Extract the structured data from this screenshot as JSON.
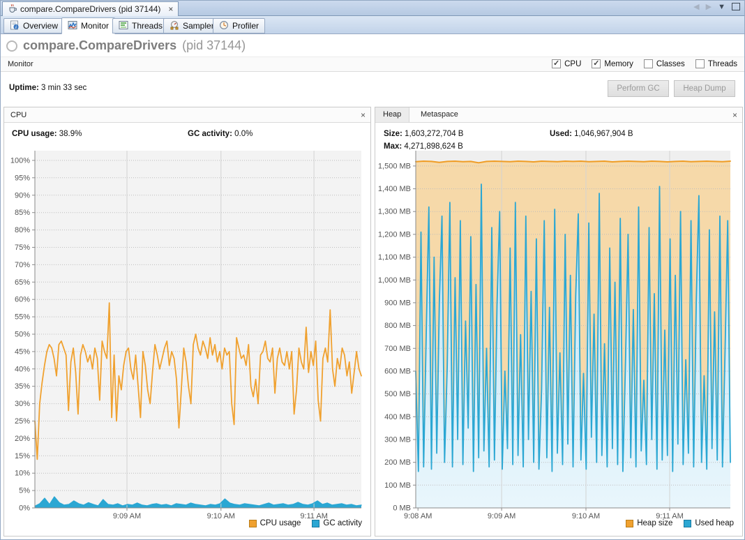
{
  "window": {
    "doc_tab": "compare.CompareDrivers (pid 37144)",
    "doc_tab_close": "×"
  },
  "tabs": [
    {
      "label": "Overview",
      "selected": false
    },
    {
      "label": "Monitor",
      "selected": true
    },
    {
      "label": "Threads",
      "selected": false
    },
    {
      "label": "Sampler",
      "selected": false
    },
    {
      "label": "Profiler",
      "selected": false
    }
  ],
  "header": {
    "title": "compare.CompareDrivers",
    "pid": "(pid 37144)"
  },
  "monitor_bar": {
    "label": "Monitor",
    "checkboxes": [
      {
        "label": "CPU",
        "checked": true
      },
      {
        "label": "Memory",
        "checked": true
      },
      {
        "label": "Classes",
        "checked": false
      },
      {
        "label": "Threads",
        "checked": false
      }
    ]
  },
  "status": {
    "uptime_label": "Uptime:",
    "uptime_value": "3 min 33 sec",
    "buttons": [
      {
        "label": "Perform GC",
        "enabled": false
      },
      {
        "label": "Heap Dump",
        "enabled": false
      }
    ]
  },
  "cpu_panel": {
    "title": "CPU",
    "close": "×",
    "stats": [
      {
        "label": "CPU usage:",
        "value": "38.9%"
      },
      {
        "label": "GC activity:",
        "value": "0.0%"
      }
    ]
  },
  "heap_panel": {
    "tabs": [
      {
        "label": "Heap",
        "selected": true
      },
      {
        "label": "Metaspace",
        "selected": false
      }
    ],
    "close": "×",
    "stats": [
      {
        "label": "Size:",
        "value": "1,603,272,704 B"
      },
      {
        "label": "Max:",
        "value": "4,271,898,624 B"
      },
      {
        "label": "Used:",
        "value": "1,046,967,904 B"
      }
    ]
  },
  "colors": {
    "orange": "#f0a12f",
    "orange_border": "#b97c17",
    "orange_fill": "#f6d9a9",
    "blue": "#2ba7d3",
    "blue_border": "#17789f",
    "plot_bg": "#f3f3f3",
    "grid": "#bdbdbd",
    "axis": "#8a8a8a"
  },
  "chart_data": [
    {
      "id": "cpu",
      "type": "line",
      "title": "CPU usage / GC activity over time",
      "ylim": [
        0,
        102.8
      ],
      "bg": "#f3f3f3",
      "margins": {
        "l": 42,
        "r": 9,
        "t": 6,
        "b": 22
      },
      "y_ticks": [
        {
          "v": 0,
          "label": "0%"
        },
        {
          "v": 5,
          "label": "5%"
        },
        {
          "v": 10,
          "label": "10%"
        },
        {
          "v": 15,
          "label": "15%"
        },
        {
          "v": 20,
          "label": "20%"
        },
        {
          "v": 25,
          "label": "25%"
        },
        {
          "v": 30,
          "label": "30%"
        },
        {
          "v": 35,
          "label": "35%"
        },
        {
          "v": 40,
          "label": "40%"
        },
        {
          "v": 45,
          "label": "45%"
        },
        {
          "v": 50,
          "label": "50%"
        },
        {
          "v": 55,
          "label": "55%"
        },
        {
          "v": 60,
          "label": "60%"
        },
        {
          "v": 65,
          "label": "65%"
        },
        {
          "v": 70,
          "label": "70%"
        },
        {
          "v": 75,
          "label": "75%"
        },
        {
          "v": 80,
          "label": "80%"
        },
        {
          "v": 85,
          "label": "85%"
        },
        {
          "v": 90,
          "label": "90%"
        },
        {
          "v": 95,
          "label": "95%"
        },
        {
          "v": 100,
          "label": "100%"
        }
      ],
      "x_ticks": [
        {
          "f": 0.282,
          "label": "9:09 AM",
          "vline": true
        },
        {
          "f": 0.57,
          "label": "9:10 AM",
          "vline": true
        },
        {
          "f": 0.855,
          "label": "9:11 AM",
          "vline": true
        }
      ],
      "series": [
        {
          "name": "CPU usage",
          "color": "#f0a12f",
          "width": 1.8,
          "values": [
            25,
            14,
            30,
            36,
            41,
            45,
            47,
            46,
            43,
            38,
            47,
            48,
            46,
            44,
            28,
            42,
            46,
            39,
            27,
            44,
            47,
            45,
            42,
            44,
            40,
            46,
            43,
            31,
            48,
            45,
            43,
            59,
            26,
            44,
            25,
            38,
            34,
            41,
            45,
            46,
            40,
            37,
            44,
            35,
            26,
            45,
            41,
            34,
            30,
            39,
            47,
            44,
            40,
            43,
            46,
            48,
            41,
            45,
            43,
            37,
            23,
            34,
            46,
            42,
            35,
            30,
            47,
            50,
            46,
            44,
            48,
            46,
            43,
            49,
            44,
            47,
            42,
            45,
            40,
            46,
            44,
            45,
            30,
            24,
            49,
            46,
            43,
            44,
            41,
            47,
            35,
            32,
            37,
            30,
            44,
            45,
            48,
            43,
            42,
            46,
            33,
            43,
            46,
            42,
            41,
            45,
            40,
            45,
            27,
            34,
            46,
            42,
            40,
            52,
            39,
            45,
            41,
            48,
            31,
            25,
            43,
            46,
            42,
            57,
            40,
            35,
            43,
            40,
            46,
            44,
            38,
            42,
            33,
            39,
            45,
            40,
            38
          ]
        },
        {
          "name": "GC activity",
          "color": "#2ba7d3",
          "width": 1.4,
          "fill": "#2ba7d3",
          "values": [
            0.5,
            1.2,
            2.8,
            1.0,
            3.2,
            1.5,
            0.8,
            1.0,
            2.0,
            1.2,
            0.8,
            1.5,
            1.0,
            0.6,
            2.4,
            1.0,
            0.8,
            1.2,
            0.6,
            1.0,
            0.8,
            1.4,
            0.8,
            0.6,
            1.0,
            1.2,
            0.8,
            1.0,
            0.6,
            1.2,
            1.0,
            0.8,
            1.4,
            1.0,
            0.8,
            0.6,
            1.0,
            0.8,
            1.2,
            2.6,
            1.4,
            1.0,
            0.8,
            1.2,
            1.0,
            0.8,
            0.6,
            1.0,
            1.4,
            0.8,
            1.0,
            1.2,
            0.8,
            1.0,
            1.6,
            1.0,
            0.8,
            1.2,
            2.0,
            1.0,
            1.4,
            0.8,
            1.0,
            1.2,
            0.8,
            1.0,
            0.6,
            0.8
          ]
        }
      ],
      "legend": [
        "CPU usage",
        "GC activity"
      ]
    },
    {
      "id": "heap",
      "type": "area",
      "title": "Heap size / Used heap over time",
      "ylim": [
        0,
        1567
      ],
      "bg": "#efefef",
      "margins": {
        "l": 56,
        "r": 15,
        "t": 6,
        "b": 20
      },
      "fill_gradient": {
        "from": "#bce1f2",
        "to": "#e9f6fc"
      },
      "y_ticks": [
        {
          "v": 0,
          "label": "0 MB"
        },
        {
          "v": 100,
          "label": "100 MB"
        },
        {
          "v": 200,
          "label": "200 MB"
        },
        {
          "v": 300,
          "label": "300 MB"
        },
        {
          "v": 400,
          "label": "400 MB"
        },
        {
          "v": 500,
          "label": "500 MB"
        },
        {
          "v": 600,
          "label": "600 MB"
        },
        {
          "v": 700,
          "label": "700 MB"
        },
        {
          "v": 800,
          "label": "800 MB"
        },
        {
          "v": 900,
          "label": "900 MB"
        },
        {
          "v": 1000,
          "label": "1,000 MB"
        },
        {
          "v": 1100,
          "label": "1,100 MB"
        },
        {
          "v": 1200,
          "label": "1,200 MB"
        },
        {
          "v": 1300,
          "label": "1,300 MB"
        },
        {
          "v": 1400,
          "label": "1,400 MB"
        },
        {
          "v": 1500,
          "label": "1,500 MB"
        }
      ],
      "x_ticks": [
        {
          "f": 0.007,
          "label": "9:08 AM",
          "vline": false
        },
        {
          "f": 0.273,
          "label": "9:09 AM",
          "vline": true
        },
        {
          "f": 0.541,
          "label": "9:10 AM",
          "vline": true
        },
        {
          "f": 0.807,
          "label": "9:11 AM",
          "vline": true
        }
      ],
      "series": [
        {
          "name": "Heap size",
          "color": "#ef9d26",
          "width": 2,
          "fill": "#f6d9a9",
          "values": [
            1519,
            1521,
            1520,
            1516,
            1520,
            1521,
            1519,
            1520,
            1514,
            1520,
            1521,
            1520,
            1519,
            1521,
            1520,
            1518,
            1521,
            1520,
            1519,
            1521,
            1520,
            1521,
            1519,
            1520,
            1521,
            1518,
            1520,
            1521,
            1520,
            1519,
            1521,
            1520,
            1518,
            1520,
            1521,
            1519,
            1520,
            1521,
            1520,
            1519,
            1521
          ]
        },
        {
          "name": "Used heap",
          "color": "#2ba7d3",
          "width": 1.8,
          "fill": "gradient",
          "values": [
            600,
            160,
            1210,
            180,
            760,
            1320,
            170,
            1100,
            240,
            900,
            1280,
            200,
            620,
            1340,
            180,
            1010,
            300,
            1260,
            190,
            820,
            350,
            1190,
            160,
            980,
            220,
            1420,
            250,
            700,
            180,
            1230,
            210,
            890,
            1300,
            170,
            600,
            260,
            1140,
            190,
            1340,
            230,
            760,
            180,
            1280,
            300,
            950,
            200,
            1180,
            170,
            520,
            1260,
            220,
            880,
            160,
            1310,
            240,
            680,
            190,
            1200,
            280,
            1020,
            180,
            930,
            1290,
            210,
            590,
            170,
            1250,
            310,
            850,
            200,
            1380,
            230,
            720,
            180,
            1140,
            260,
            990,
            190,
            1270,
            160,
            640,
            1200,
            220,
            870,
            180,
            1320,
            250,
            560,
            190,
            1230,
            300,
            940,
            170,
            1410,
            210,
            780,
            230,
            1180,
            160,
            1020,
            280,
            1300,
            190,
            650,
            240,
            1260,
            180,
            900,
            1370,
            200,
            580,
            170,
            1220,
            260,
            860,
            210,
            1280,
            180,
            700,
            1260,
            200
          ]
        }
      ],
      "legend": [
        "Heap size",
        "Used heap"
      ]
    }
  ]
}
